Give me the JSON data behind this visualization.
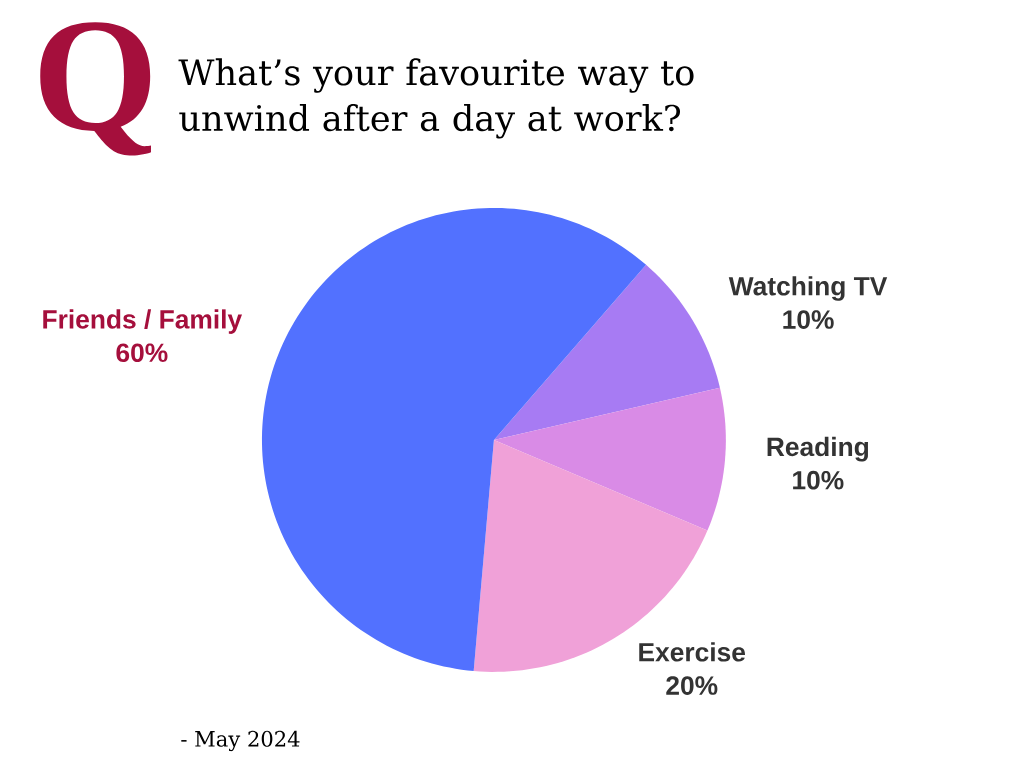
{
  "chart_data": {
    "type": "pie",
    "title": "What’s your favourite way to unwind after a day at work?",
    "categories": [
      "Watching TV",
      "Reading",
      "Exercise",
      "Friends / Family"
    ],
    "values": [
      10,
      10,
      20,
      60
    ],
    "value_labels": [
      "10%",
      "10%",
      "20%",
      "60%"
    ],
    "colors": [
      "#a77bf3",
      "#d98be6",
      "#f0a1d8",
      "#5271ff"
    ],
    "annotations": [
      "Q",
      "- May 2024"
    ]
  }
}
